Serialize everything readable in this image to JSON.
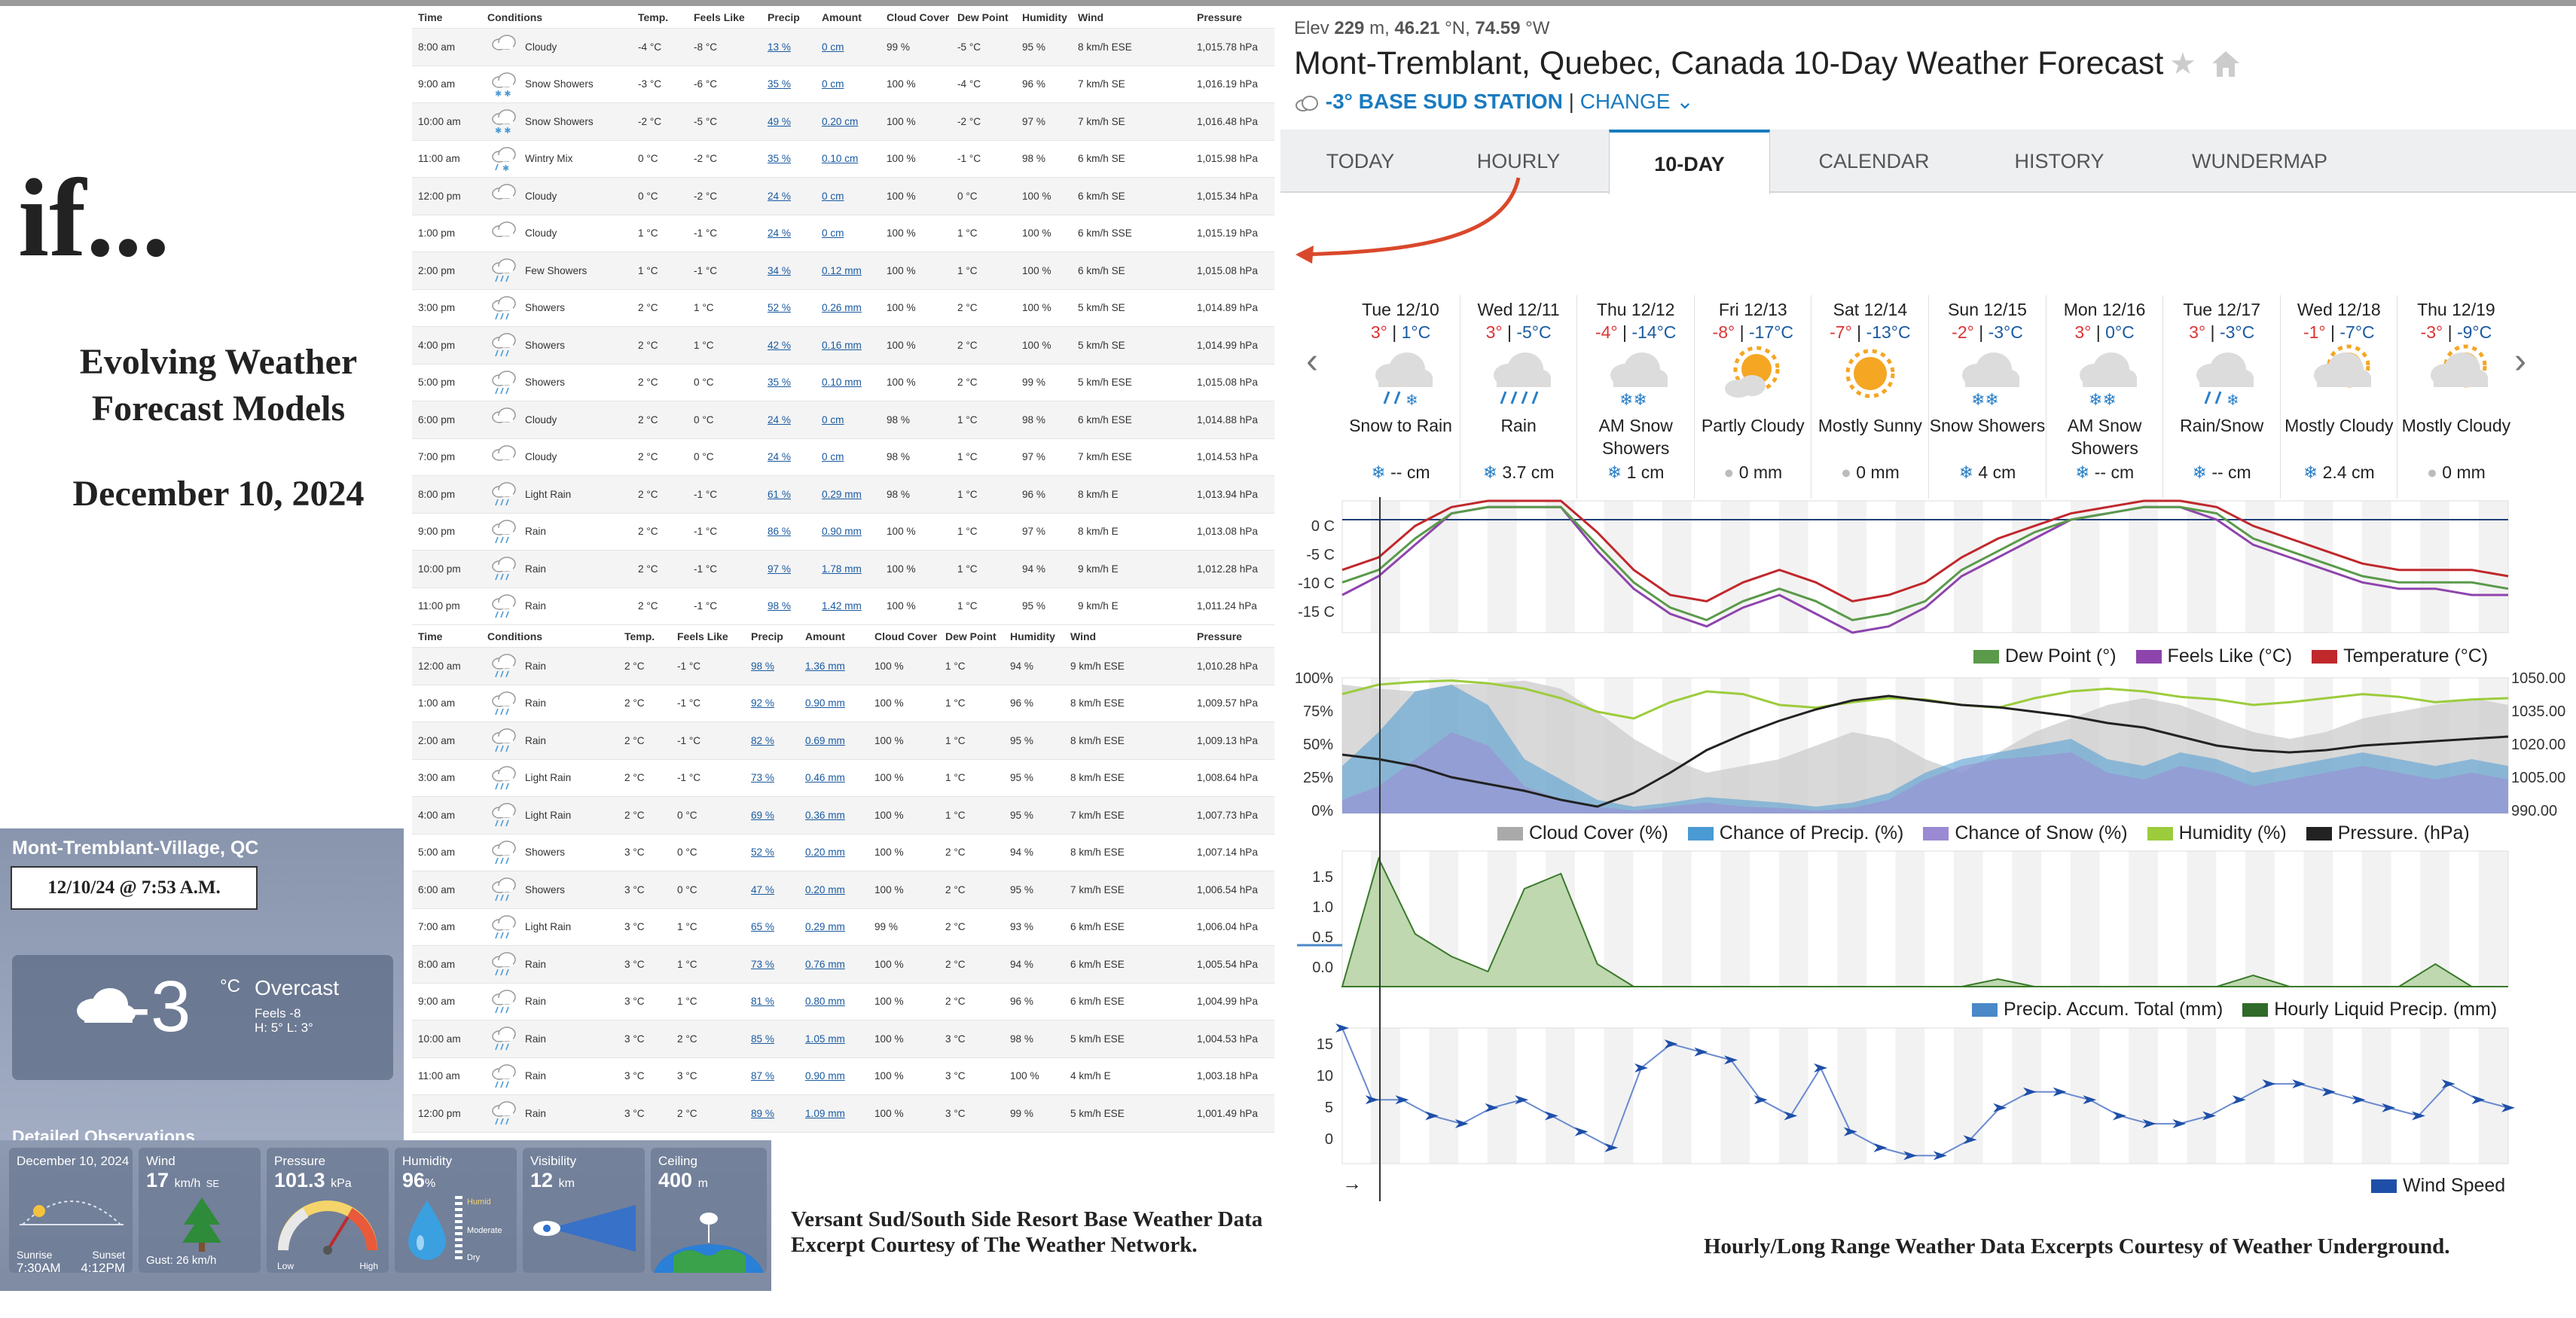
{
  "slide": {
    "title": "if...",
    "subtitle_line1": "Evolving Weather",
    "subtitle_line2": "Forecast Models",
    "date": "December 10, 2024",
    "caption_left_line1": "Versant Sud/South Side Resort Base Weather Data",
    "caption_left_line2": "Excerpt Courtesy of The Weather Network.",
    "caption_right": "Hourly/Long Range Weather Data Excerpts Courtesy of Weather Underground."
  },
  "twn": {
    "location": "Mont-Tremblant-Village, QC",
    "stamp": "12/10/24 @ 7:53 A.M.",
    "temp": "-3",
    "unit": "°C",
    "condition": "Overcast",
    "feels": "Feels -8",
    "hilo": "H: 5°   L: 3°",
    "detailed_title": "Detailed Observations",
    "tiles": {
      "date": "December 10, 2024",
      "sunrise_label": "Sunrise",
      "sunrise": "7:30AM",
      "sunset_label": "Sunset",
      "sunset": "4:12PM",
      "wind_label": "Wind",
      "wind": "17",
      "wind_unit": "km/h",
      "wind_dir": "SE",
      "gust": "Gust: 26 km/h",
      "pressure_label": "Pressure",
      "pressure": "101.3",
      "pressure_unit": "kPa",
      "low": "Low",
      "high": "High",
      "humidity_label": "Humidity",
      "humidity": "96",
      "humidity_unit": "%",
      "humid": "Humid",
      "moderate": "Moderate",
      "dry": "Dry",
      "visibility_label": "Visibility",
      "visibility": "12",
      "visibility_unit": "km",
      "ceiling_label": "Ceiling",
      "ceiling": "400",
      "ceiling_unit": "m"
    }
  },
  "hourly": {
    "headers": [
      "Time",
      "Conditions",
      "Temp.",
      "Feels Like",
      "Precip",
      "Amount",
      "Cloud Cover",
      "Dew Point",
      "Humidity",
      "Wind",
      "Pressure"
    ],
    "day1": [
      [
        "8:00 am",
        "Cloudy",
        "-4 °C",
        "-8 °C",
        "13 %",
        "0 cm",
        "99 %",
        "-5 °C",
        "95 %",
        "8 km/h ESE",
        "1,015.78 hPa"
      ],
      [
        "9:00 am",
        "Snow Showers",
        "-3 °C",
        "-6 °C",
        "35 %",
        "0 cm",
        "100 %",
        "-4 °C",
        "96 %",
        "7 km/h SE",
        "1,016.19 hPa"
      ],
      [
        "10:00 am",
        "Snow Showers",
        "-2 °C",
        "-5 °C",
        "49 %",
        "0.20 cm",
        "100 %",
        "-2 °C",
        "97 %",
        "7 km/h SE",
        "1,016.48 hPa"
      ],
      [
        "11:00 am",
        "Wintry Mix",
        "0 °C",
        "-2 °C",
        "35 %",
        "0.10 cm",
        "100 %",
        "-1 °C",
        "98 %",
        "6 km/h SE",
        "1,015.98 hPa"
      ],
      [
        "12:00 pm",
        "Cloudy",
        "0 °C",
        "-2 °C",
        "24 %",
        "0 cm",
        "100 %",
        "0 °C",
        "100 %",
        "6 km/h SE",
        "1,015.34 hPa"
      ],
      [
        "1:00 pm",
        "Cloudy",
        "1 °C",
        "-1 °C",
        "24 %",
        "0 cm",
        "100 %",
        "1 °C",
        "100 %",
        "6 km/h SSE",
        "1,015.19 hPa"
      ],
      [
        "2:00 pm",
        "Few Showers",
        "1 °C",
        "-1 °C",
        "34 %",
        "0.12 mm",
        "100 %",
        "1 °C",
        "100 %",
        "6 km/h SE",
        "1,015.08 hPa"
      ],
      [
        "3:00 pm",
        "Showers",
        "2 °C",
        "1 °C",
        "52 %",
        "0.26 mm",
        "100 %",
        "2 °C",
        "100 %",
        "5 km/h SE",
        "1,014.89 hPa"
      ],
      [
        "4:00 pm",
        "Showers",
        "2 °C",
        "1 °C",
        "42 %",
        "0.16 mm",
        "100 %",
        "2 °C",
        "100 %",
        "5 km/h SE",
        "1,014.99 hPa"
      ],
      [
        "5:00 pm",
        "Showers",
        "2 °C",
        "0 °C",
        "35 %",
        "0.10 mm",
        "100 %",
        "2 °C",
        "99 %",
        "5 km/h ESE",
        "1,015.08 hPa"
      ],
      [
        "6:00 pm",
        "Cloudy",
        "2 °C",
        "0 °C",
        "24 %",
        "0 cm",
        "98 %",
        "1 °C",
        "98 %",
        "6 km/h ESE",
        "1,014.88 hPa"
      ],
      [
        "7:00 pm",
        "Cloudy",
        "2 °C",
        "0 °C",
        "24 %",
        "0 cm",
        "98 %",
        "1 °C",
        "97 %",
        "7 km/h ESE",
        "1,014.53 hPa"
      ],
      [
        "8:00 pm",
        "Light Rain",
        "2 °C",
        "-1 °C",
        "61 %",
        "0.29 mm",
        "98 %",
        "1 °C",
        "96 %",
        "8 km/h E",
        "1,013.94 hPa"
      ],
      [
        "9:00 pm",
        "Rain",
        "2 °C",
        "-1 °C",
        "86 %",
        "0.90 mm",
        "100 %",
        "1 °C",
        "97 %",
        "8 km/h E",
        "1,013.08 hPa"
      ],
      [
        "10:00 pm",
        "Rain",
        "2 °C",
        "-1 °C",
        "97 %",
        "1.78 mm",
        "100 %",
        "1 °C",
        "94 %",
        "9 km/h E",
        "1,012.28 hPa"
      ],
      [
        "11:00 pm",
        "Rain",
        "2 °C",
        "-1 °C",
        "98 %",
        "1.42 mm",
        "100 %",
        "1 °C",
        "95 %",
        "9 km/h E",
        "1,011.24 hPa"
      ]
    ],
    "day2": [
      [
        "12:00 am",
        "Rain",
        "2 °C",
        "-1 °C",
        "98 %",
        "1.36 mm",
        "100 %",
        "1 °C",
        "94 %",
        "9 km/h ESE",
        "1,010.28 hPa"
      ],
      [
        "1:00 am",
        "Rain",
        "2 °C",
        "-1 °C",
        "92 %",
        "0.90 mm",
        "100 %",
        "1 °C",
        "96 %",
        "8 km/h ESE",
        "1,009.57 hPa"
      ],
      [
        "2:00 am",
        "Rain",
        "2 °C",
        "-1 °C",
        "82 %",
        "0.69 mm",
        "100 %",
        "1 °C",
        "95 %",
        "8 km/h ESE",
        "1,009.13 hPa"
      ],
      [
        "3:00 am",
        "Light Rain",
        "2 °C",
        "-1 °C",
        "73 %",
        "0.46 mm",
        "100 %",
        "1 °C",
        "95 %",
        "8 km/h ESE",
        "1,008.64 hPa"
      ],
      [
        "4:00 am",
        "Light Rain",
        "2 °C",
        "0 °C",
        "69 %",
        "0.36 mm",
        "100 %",
        "1 °C",
        "95 %",
        "7 km/h ESE",
        "1,007.73 hPa"
      ],
      [
        "5:00 am",
        "Showers",
        "3 °C",
        "0 °C",
        "52 %",
        "0.20 mm",
        "100 %",
        "2 °C",
        "94 %",
        "8 km/h ESE",
        "1,007.14 hPa"
      ],
      [
        "6:00 am",
        "Showers",
        "3 °C",
        "0 °C",
        "47 %",
        "0.20 mm",
        "100 %",
        "2 °C",
        "95 %",
        "7 km/h ESE",
        "1,006.54 hPa"
      ],
      [
        "7:00 am",
        "Light Rain",
        "3 °C",
        "1 °C",
        "65 %",
        "0.29 mm",
        "99 %",
        "2 °C",
        "93 %",
        "6 km/h ESE",
        "1,006.04 hPa"
      ],
      [
        "8:00 am",
        "Rain",
        "3 °C",
        "1 °C",
        "73 %",
        "0.76 mm",
        "100 %",
        "2 °C",
        "94 %",
        "6 km/h ESE",
        "1,005.54 hPa"
      ],
      [
        "9:00 am",
        "Rain",
        "3 °C",
        "1 °C",
        "81 %",
        "0.80 mm",
        "100 %",
        "2 °C",
        "96 %",
        "6 km/h ESE",
        "1,004.99 hPa"
      ],
      [
        "10:00 am",
        "Rain",
        "3 °C",
        "2 °C",
        "85 %",
        "1.05 mm",
        "100 %",
        "3 °C",
        "98 %",
        "5 km/h ESE",
        "1,004.53 hPa"
      ],
      [
        "11:00 am",
        "Rain",
        "3 °C",
        "3 °C",
        "87 %",
        "0.90 mm",
        "100 %",
        "3 °C",
        "100 %",
        "4 km/h E",
        "1,003.18 hPa"
      ],
      [
        "12:00 pm",
        "Rain",
        "3 °C",
        "2 °C",
        "89 %",
        "1.09 mm",
        "100 %",
        "3 °C",
        "99 %",
        "5 km/h ESE",
        "1,001.49 hPa"
      ]
    ]
  },
  "wu": {
    "elev_label": "Elev",
    "elev_value": "229",
    "elev_unit": "m,",
    "lat": "46.21",
    "lat_dir": "°N,",
    "lon": "74.59",
    "lon_dir": "°W",
    "title": "Mont-Tremblant, Quebec, Canada 10-Day Weather Forecast",
    "station_temp": "-3°",
    "station_name": "BASE SUD STATION",
    "station_sep": "|",
    "change": "CHANGE",
    "tabs": [
      "TODAY",
      "HOURLY",
      "10-DAY",
      "CALENDAR",
      "HISTORY",
      "WUNDERMAP"
    ],
    "days": [
      {
        "name": "Tue 12/10",
        "hi": "3°",
        "lo": "1°C",
        "cond": "Snow to Rain",
        "amt": "-- cm",
        "icon": "rain-snow"
      },
      {
        "name": "Wed 12/11",
        "hi": "3°",
        "lo": "-5°C",
        "cond": "Rain",
        "amt": "3.7 cm",
        "icon": "rain"
      },
      {
        "name": "Thu 12/12",
        "hi": "-4°",
        "lo": "-14°C",
        "cond": "AM Snow Showers",
        "amt": "1 cm",
        "icon": "snow"
      },
      {
        "name": "Fri 12/13",
        "hi": "-8°",
        "lo": "-17°C",
        "cond": "Partly Cloudy",
        "amt": "0 mm",
        "icon": "partly"
      },
      {
        "name": "Sat 12/14",
        "hi": "-7°",
        "lo": "-13°C",
        "cond": "Mostly Sunny",
        "amt": "0 mm",
        "icon": "sunny"
      },
      {
        "name": "Sun 12/15",
        "hi": "-2°",
        "lo": "-3°C",
        "cond": "Snow Showers",
        "amt": "4 cm",
        "icon": "snow"
      },
      {
        "name": "Mon 12/16",
        "hi": "3°",
        "lo": "0°C",
        "cond": "AM Snow Showers",
        "amt": "-- cm",
        "icon": "snow"
      },
      {
        "name": "Tue 12/17",
        "hi": "3°",
        "lo": "-3°C",
        "cond": "Rain/Snow",
        "amt": "-- cm",
        "icon": "rain-snow"
      },
      {
        "name": "Wed 12/18",
        "hi": "-1°",
        "lo": "-7°C",
        "cond": "Mostly Cloudy",
        "amt": "2.4 cm",
        "icon": "mcloudy"
      },
      {
        "name": "Thu 12/19",
        "hi": "-3°",
        "lo": "-9°C",
        "cond": "Mostly Cloudy",
        "amt": "0 mm",
        "icon": "mcloudy"
      }
    ],
    "legends": {
      "temp": [
        "Dew Point (°)",
        "Feels Like (°C)",
        "Temperature (°C)"
      ],
      "humid": [
        "Cloud Cover (%)",
        "Chance of Precip. (%)",
        "Chance of Snow (%)",
        "Humidity (%)",
        "Pressure. (hPa)"
      ],
      "precip": [
        "Precip. Accum. Total (mm)",
        "Hourly Liquid Precip. (mm)"
      ],
      "wind": [
        "Wind Speed"
      ]
    },
    "axes": {
      "temp": [
        "0 C",
        "-5 C",
        "-10 C",
        "-15 C"
      ],
      "pct": [
        "100%",
        "75%",
        "50%",
        "25%",
        "0%"
      ],
      "hpa": [
        "1050.00",
        "1035.00",
        "1020.00",
        "1005.00",
        "990.00"
      ],
      "precip": [
        "1.5",
        "1.0",
        "0.5",
        "0.0"
      ],
      "wind": [
        "15",
        "10",
        "5",
        "0"
      ]
    },
    "wind_arrow": "→"
  },
  "colors": {
    "accent": "#1a7bc0",
    "temp": "#c0282c",
    "feels": "#8e44ad",
    "dew": "#5a9a4a",
    "humidity": "#9ccc3c",
    "precip": "#4a9ad4",
    "snow": "#9a8ad4",
    "cloud": "#aaaaaa",
    "arrow": "#d9482b"
  },
  "chart_data": [
    {
      "type": "line",
      "title": "Temperature",
      "series": [
        {
          "name": "Temperature (°C)",
          "values": [
            -8,
            -6,
            -1,
            2,
            3,
            3,
            3,
            -2,
            -8,
            -12,
            -13,
            -10,
            -8,
            -10,
            -13,
            -12,
            -10,
            -6,
            -3,
            -1,
            1,
            2,
            3,
            3,
            2,
            -1,
            -3,
            -5,
            -7,
            -8,
            -8,
            -8,
            -9
          ]
        },
        {
          "name": "Feels Like (°C)",
          "values": [
            -12,
            -9,
            -4,
            1,
            2,
            2,
            2,
            -5,
            -11,
            -15,
            -17,
            -14,
            -12,
            -15,
            -18,
            -17,
            -14,
            -9,
            -6,
            -3,
            0,
            1,
            2,
            2,
            0,
            -4,
            -6,
            -8,
            -10,
            -11,
            -11,
            -12,
            -12
          ]
        },
        {
          "name": "Dew Point (°)",
          "values": [
            -10,
            -8,
            -3,
            1,
            2,
            2,
            2,
            -4,
            -10,
            -14,
            -16,
            -13,
            -11,
            -13,
            -16,
            -15,
            -13,
            -8,
            -5,
            -2,
            0,
            1,
            2,
            2,
            1,
            -3,
            -5,
            -7,
            -9,
            -10,
            -10,
            -10,
            -11
          ]
        }
      ],
      "ylim": [
        -18,
        3
      ]
    },
    {
      "type": "area",
      "title": "Cloud/Precip/Humidity",
      "series": [
        {
          "name": "Humidity (%)",
          "values": [
            88,
            95,
            97,
            98,
            96,
            92,
            85,
            75,
            70,
            82,
            90,
            88,
            80,
            78,
            82,
            85,
            84,
            80,
            78,
            85,
            90,
            92,
            90,
            86,
            84,
            80,
            82,
            85,
            88,
            86,
            82,
            84,
            85
          ]
        },
        {
          "name": "Chance of Precip. (%)",
          "values": [
            35,
            60,
            90,
            95,
            80,
            40,
            25,
            10,
            5,
            8,
            12,
            10,
            8,
            5,
            8,
            15,
            30,
            40,
            45,
            50,
            55,
            40,
            35,
            45,
            40,
            30,
            35,
            40,
            45,
            40,
            35,
            40,
            35
          ]
        },
        {
          "name": "Pressure. (hPa)",
          "values": [
            1016,
            1014,
            1011,
            1006,
            1003,
            1000,
            996,
            993,
            999,
            1008,
            1018,
            1025,
            1031,
            1036,
            1040,
            1042,
            1040,
            1038,
            1037,
            1035,
            1033,
            1030,
            1028,
            1024,
            1020,
            1018,
            1017,
            1018,
            1020,
            1021,
            1022,
            1023,
            1024
          ]
        }
      ]
    },
    {
      "type": "area",
      "title": "Precipitation",
      "series": [
        {
          "name": "Hourly Liquid Precip. (mm)",
          "values": [
            0,
            1.7,
            0.7,
            0.4,
            0.2,
            1.3,
            1.5,
            0.3,
            0,
            0,
            0,
            0,
            0,
            0,
            0,
            0,
            0,
            0,
            0.1,
            0,
            0,
            0,
            0,
            0,
            0,
            0.15,
            0,
            0,
            0,
            0,
            0.3,
            0,
            0
          ]
        }
      ],
      "ylim": [
        0,
        1.8
      ]
    },
    {
      "type": "line",
      "title": "Wind",
      "series": [
        {
          "name": "Wind Speed",
          "values": [
            17,
            8,
            8,
            6,
            5,
            7,
            8,
            6,
            4,
            2,
            12,
            15,
            14,
            13,
            8,
            6,
            12,
            4,
            2,
            1,
            1,
            3,
            7,
            9,
            9,
            8,
            6,
            5,
            5,
            6,
            8,
            10,
            10,
            9,
            8,
            7,
            6,
            10,
            8,
            7
          ]
        }
      ],
      "ylim": [
        0,
        17
      ]
    }
  ]
}
